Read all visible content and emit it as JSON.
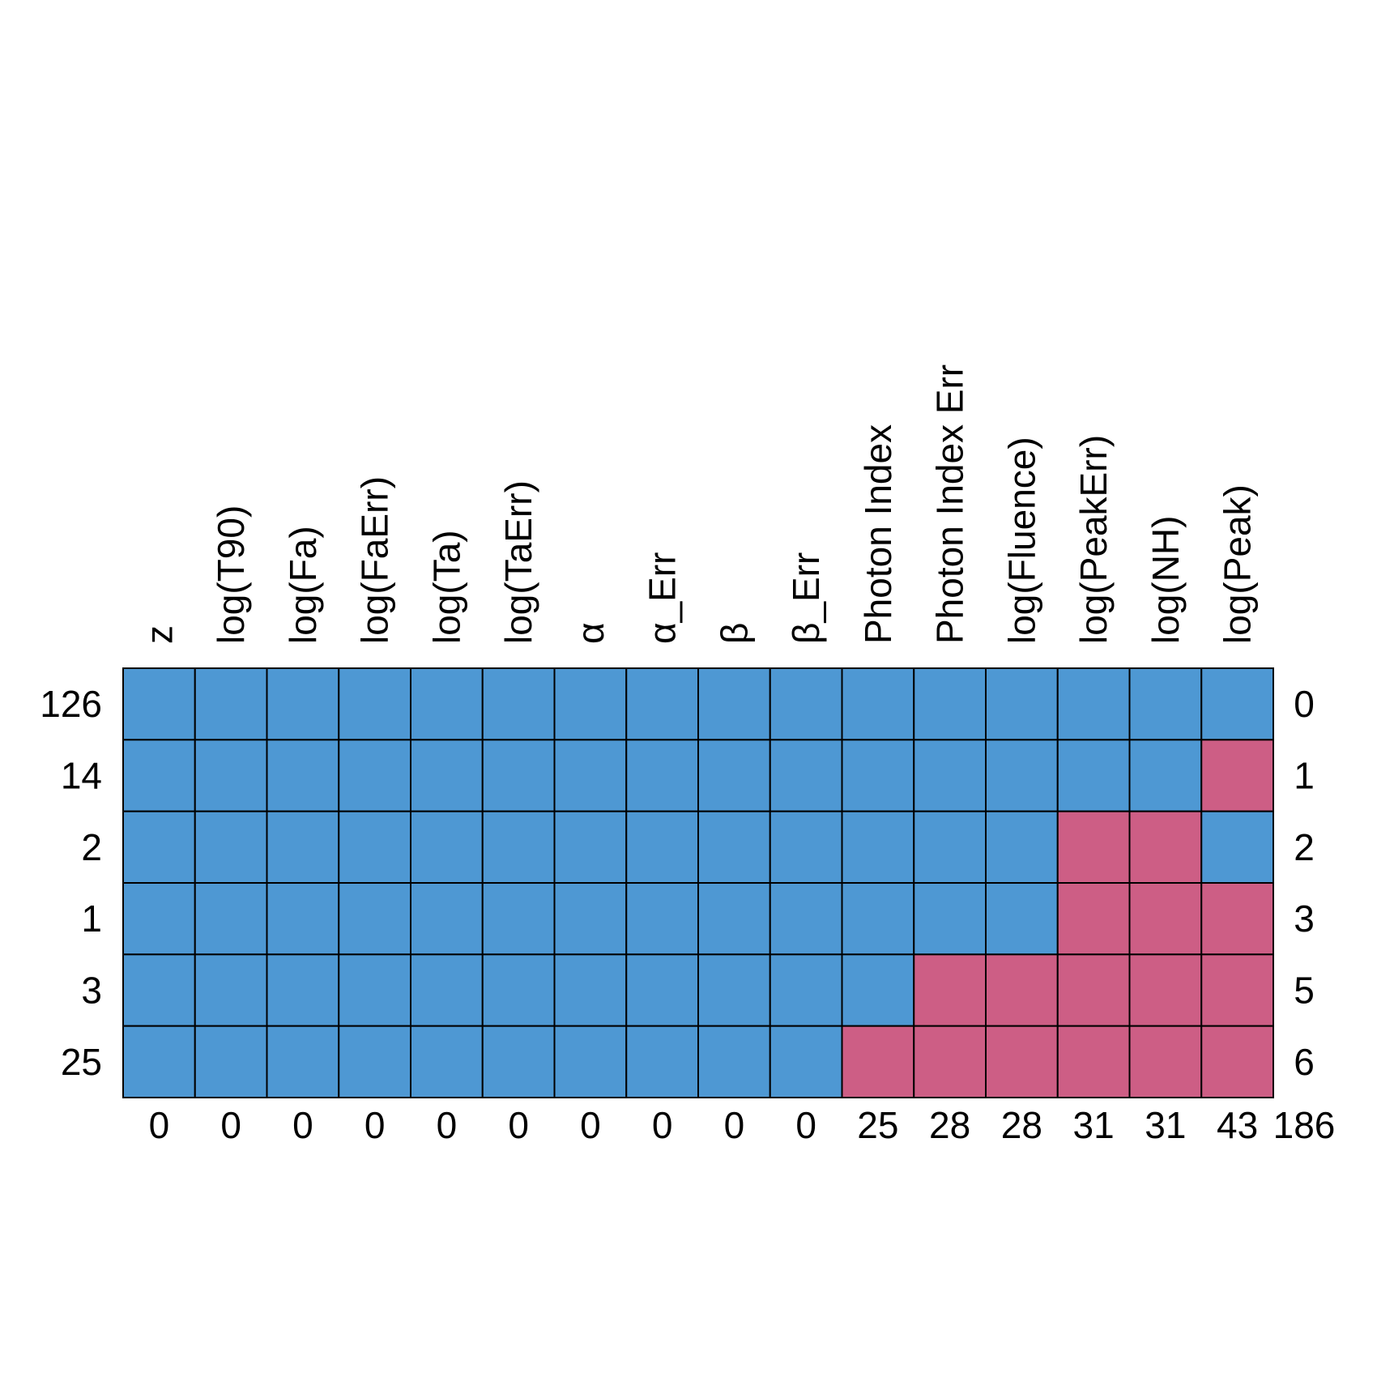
{
  "chart_data": {
    "type": "heatmap",
    "title": "",
    "variables": [
      "z",
      "log(T90)",
      "log(Fa)",
      "log(FaErr)",
      "log(Ta)",
      "log(TaErr)",
      "α",
      "α_Err",
      "β",
      "β_Err",
      "Photon Index",
      "Photon Index Err",
      "log(Fluence)",
      "log(PeakErr)",
      "log(NH)",
      "log(Peak)"
    ],
    "row_counts": [
      "126",
      "14",
      "2",
      "1",
      "3",
      "25"
    ],
    "row_missing_totals": [
      "0",
      "1",
      "2",
      "3",
      "5",
      "6"
    ],
    "column_missing_totals": [
      "0",
      "0",
      "0",
      "0",
      "0",
      "0",
      "0",
      "0",
      "0",
      "0",
      "25",
      "28",
      "28",
      "31",
      "31",
      "43"
    ],
    "grand_total": "186",
    "pattern": [
      [
        1,
        1,
        1,
        1,
        1,
        1,
        1,
        1,
        1,
        1,
        1,
        1,
        1,
        1,
        1,
        1
      ],
      [
        1,
        1,
        1,
        1,
        1,
        1,
        1,
        1,
        1,
        1,
        1,
        1,
        1,
        1,
        1,
        0
      ],
      [
        1,
        1,
        1,
        1,
        1,
        1,
        1,
        1,
        1,
        1,
        1,
        1,
        1,
        0,
        0,
        1
      ],
      [
        1,
        1,
        1,
        1,
        1,
        1,
        1,
        1,
        1,
        1,
        1,
        1,
        1,
        0,
        0,
        0
      ],
      [
        1,
        1,
        1,
        1,
        1,
        1,
        1,
        1,
        1,
        1,
        1,
        0,
        0,
        0,
        0,
        0
      ],
      [
        1,
        1,
        1,
        1,
        1,
        1,
        1,
        1,
        1,
        1,
        0,
        0,
        0,
        0,
        0,
        0
      ]
    ],
    "colors": {
      "observed": "#4E98D3",
      "missing": "#CD5E85",
      "border": "#000000"
    }
  }
}
